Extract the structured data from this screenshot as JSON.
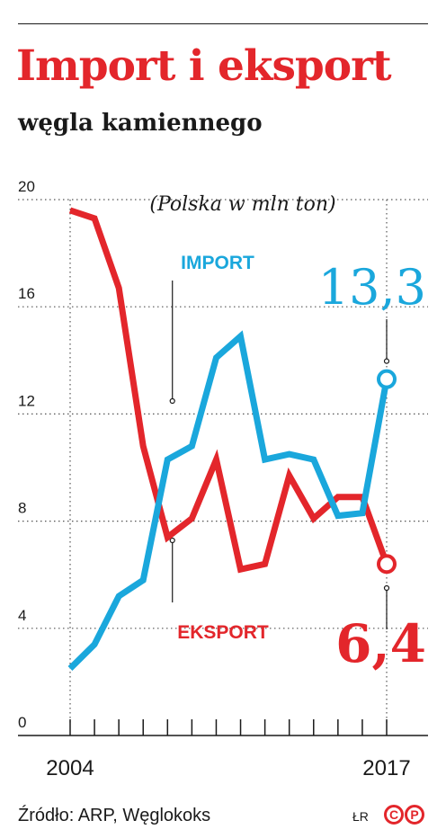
{
  "header": {
    "title": "Import i eksport",
    "subtitle": "węgla kamiennego"
  },
  "chart_data": {
    "type": "line",
    "unit_note": "(Polska w mln ton)",
    "x": [
      2004,
      2005,
      2006,
      2007,
      2008,
      2009,
      2010,
      2011,
      2012,
      2013,
      2014,
      2015,
      2016,
      2017
    ],
    "x_tick_labels": [
      "2004",
      "2017"
    ],
    "y_ticks": [
      0,
      4,
      8,
      12,
      16,
      20
    ],
    "ylim": [
      0,
      20
    ],
    "grid": "horizontal dotted",
    "series": [
      {
        "name": "IMPORT",
        "color": "#1aa7dc",
        "values": [
          2.5,
          3.4,
          5.2,
          5.8,
          10.3,
          10.8,
          14.1,
          14.9,
          10.3,
          10.5,
          10.3,
          8.2,
          8.3,
          13.3
        ]
      },
      {
        "name": "EKSPORT",
        "color": "#e3262b",
        "values": [
          19.6,
          19.3,
          16.7,
          10.8,
          7.4,
          8.1,
          10.3,
          6.2,
          6.4,
          9.7,
          8.1,
          8.9,
          8.9,
          6.4
        ]
      }
    ],
    "callouts": [
      {
        "series": "IMPORT",
        "text": "13,3"
      },
      {
        "series": "EKSPORT",
        "text": "6,4"
      }
    ]
  },
  "footer": {
    "source": "Źródło: ARP, Węglokoks",
    "author": "ŁR",
    "logo": "cp-logo"
  }
}
